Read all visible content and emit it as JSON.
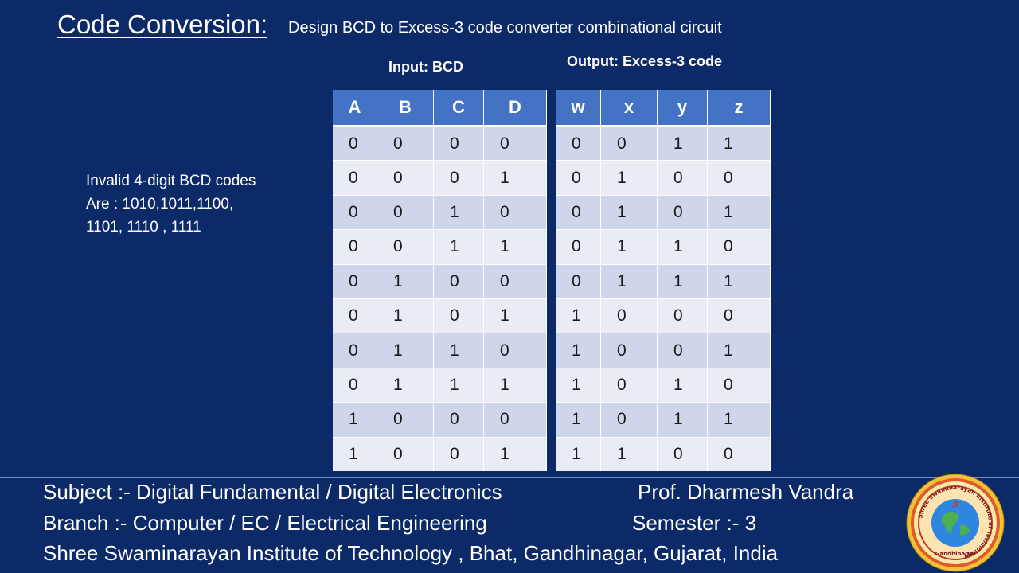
{
  "title": "Code Conversion:",
  "subtitle": "Design BCD to Excess-3  code converter combinational circuit",
  "input_caption": "Input: BCD",
  "output_caption": "Output: Excess-3 code",
  "note": {
    "line1": "Invalid 4-digit BCD codes",
    "line2": "Are : 1010,1011,1100,",
    "line3": "1101, 1110 , 1111"
  },
  "input_table": {
    "headers": [
      "A",
      "B",
      "C",
      "D"
    ],
    "rows": [
      [
        "0",
        "0",
        "0",
        "0"
      ],
      [
        "0",
        "0",
        "0",
        "1"
      ],
      [
        "0",
        "0",
        "1",
        "0"
      ],
      [
        "0",
        "0",
        "1",
        "1"
      ],
      [
        "0",
        "1",
        "0",
        "0"
      ],
      [
        "0",
        "1",
        "0",
        "1"
      ],
      [
        "0",
        "1",
        "1",
        "0"
      ],
      [
        "0",
        "1",
        "1",
        "1"
      ],
      [
        "1",
        "0",
        "0",
        "0"
      ],
      [
        "1",
        "0",
        "0",
        "1"
      ]
    ]
  },
  "output_table": {
    "headers": [
      "w",
      "x",
      "y",
      "z"
    ],
    "rows": [
      [
        "0",
        "0",
        "1",
        "1"
      ],
      [
        "0",
        "1",
        "0",
        "0"
      ],
      [
        "0",
        "1",
        "0",
        "1"
      ],
      [
        "0",
        "1",
        "1",
        "0"
      ],
      [
        "0",
        "1",
        "1",
        "1"
      ],
      [
        "1",
        "0",
        "0",
        "0"
      ],
      [
        "1",
        "0",
        "0",
        "1"
      ],
      [
        "1",
        "0",
        "1",
        "0"
      ],
      [
        "1",
        "0",
        "1",
        "1"
      ],
      [
        "1",
        "1",
        "0",
        "0"
      ]
    ]
  },
  "footer": {
    "subject": "Subject :- Digital Fundamental / Digital Electronics",
    "professor": "Prof. Dharmesh Vandra",
    "branch": "Branch  :- Computer / EC / Electrical Engineering",
    "semester": "Semester :- 3",
    "institute": "Shree Swaminarayan Institute of Technology , Bhat, Gandhinagar, Gujarat, India"
  },
  "logo": {
    "ring_text": "Shree Swaminarayan Institute of Technology",
    "place": "Gandhinagar",
    "icon": "institute-seal-icon"
  },
  "colors": {
    "background": "#0c2a67",
    "header": "#4472c4",
    "row_odd": "#cfd5ea",
    "row_even": "#e9ebf5"
  }
}
